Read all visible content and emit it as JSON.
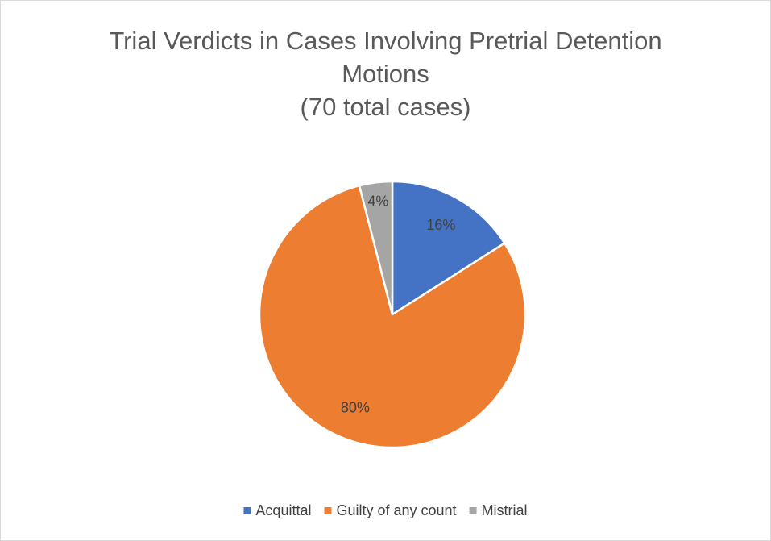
{
  "chart_data": {
    "type": "pie",
    "title": "Trial Verdicts in Cases Involving Pretrial Detention Motions",
    "subtitle": "(70 total cases)",
    "categories": [
      "Acquittal",
      "Guilty of any count",
      "Mistrial"
    ],
    "values": [
      16,
      80,
      4
    ],
    "value_labels": [
      "16%",
      "80%",
      "4%"
    ],
    "colors": [
      "#4472c4",
      "#ed7d31",
      "#a5a5a5"
    ],
    "legend": "bottom"
  }
}
